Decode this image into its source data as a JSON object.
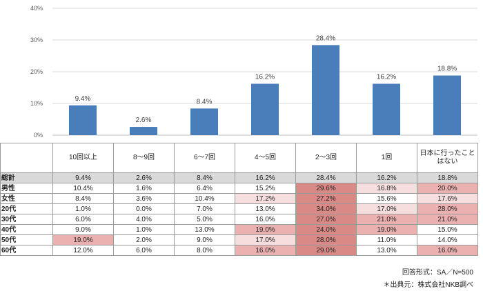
{
  "chart_data": {
    "type": "bar",
    "title": "",
    "xlabel": "",
    "ylabel": "",
    "ylim": [
      0,
      40
    ],
    "yticks": [
      "0%",
      "10%",
      "20%",
      "30%",
      "40%"
    ],
    "grid": true,
    "categories": [
      "10回以上",
      "8～9回",
      "6～7回",
      "4～5回",
      "2～3回",
      "1回",
      "日本に行ったことはない"
    ],
    "values": [
      9.4,
      2.6,
      8.4,
      16.2,
      28.4,
      16.2,
      18.8
    ],
    "labels": [
      "9.4%",
      "2.6%",
      "8.4%",
      "16.2%",
      "28.4%",
      "16.2%",
      "18.8%"
    ],
    "bar_color": "#4a7ebb"
  },
  "table": {
    "columns": [
      "10回以上",
      "8～9回",
      "6～7回",
      "4～5回",
      "2～3回",
      "1回",
      "日本に行ったことはない"
    ],
    "rows": [
      {
        "label": "総計",
        "cells": [
          "9.4%",
          "2.6%",
          "8.4%",
          "16.2%",
          "28.4%",
          "16.2%",
          "18.8%"
        ],
        "levels": [
          0,
          0,
          0,
          0,
          0,
          0,
          0
        ]
      },
      {
        "label": "男性",
        "cells": [
          "10.4%",
          "1.6%",
          "6.4%",
          "15.2%",
          "29.6%",
          "16.8%",
          "20.0%"
        ],
        "levels": [
          0,
          0,
          0,
          0,
          3,
          1,
          2
        ]
      },
      {
        "label": "女性",
        "cells": [
          "8.4%",
          "3.6%",
          "10.4%",
          "17.2%",
          "27.2%",
          "15.6%",
          "17.6%"
        ],
        "levels": [
          0,
          0,
          0,
          1,
          3,
          0,
          1
        ]
      },
      {
        "label": "20代",
        "cells": [
          "1.0%",
          "0.0%",
          "7.0%",
          "13.0%",
          "34.0%",
          "17.0%",
          "28.0%"
        ],
        "levels": [
          0,
          0,
          0,
          0,
          3,
          1,
          2
        ]
      },
      {
        "label": "30代",
        "cells": [
          "6.0%",
          "4.0%",
          "5.0%",
          "16.0%",
          "27.0%",
          "21.0%",
          "21.0%"
        ],
        "levels": [
          0,
          0,
          0,
          0,
          3,
          2,
          2
        ]
      },
      {
        "label": "40代",
        "cells": [
          "9.0%",
          "1.0%",
          "13.0%",
          "19.0%",
          "24.0%",
          "19.0%",
          "15.0%"
        ],
        "levels": [
          0,
          0,
          0,
          2,
          3,
          2,
          0
        ]
      },
      {
        "label": "50代",
        "cells": [
          "19.0%",
          "2.0%",
          "9.0%",
          "17.0%",
          "28.0%",
          "11.0%",
          "14.0%"
        ],
        "levels": [
          2,
          0,
          0,
          1,
          3,
          0,
          0
        ]
      },
      {
        "label": "60代",
        "cells": [
          "12.0%",
          "6.0%",
          "8.0%",
          "16.0%",
          "29.0%",
          "13.0%",
          "16.0%"
        ],
        "levels": [
          0,
          0,
          0,
          2,
          3,
          0,
          2
        ]
      }
    ]
  },
  "notes": {
    "format": "回答形式：SA／N=500",
    "source": "＊出典元：株式会社NKB調べ"
  }
}
